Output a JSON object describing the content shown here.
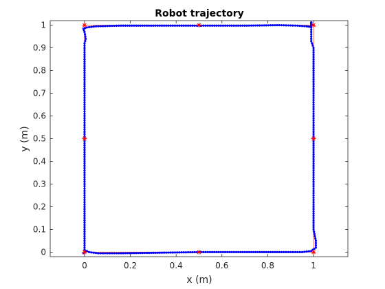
{
  "chart_data": {
    "type": "line",
    "title": "Robot trajectory",
    "xlabel": "x (m)",
    "ylabel": "y (m)",
    "xlim": [
      -0.15,
      1.15
    ],
    "ylim": [
      -0.02,
      1.02
    ],
    "xticks": [
      0,
      0.2,
      0.4,
      0.6,
      0.8,
      1
    ],
    "xtick_labels": [
      "0",
      "0.2",
      "0.4",
      "0.6",
      "0.8",
      "1"
    ],
    "yticks": [
      0,
      0.1,
      0.2,
      0.3,
      0.4,
      0.5,
      0.6,
      0.7,
      0.8,
      0.9,
      1
    ],
    "ytick_labels": [
      "0",
      "0.1",
      "0.2",
      "0.3",
      "0.4",
      "0.5",
      "0.6",
      "0.7",
      "0.8",
      "0.9",
      "1"
    ],
    "grid": false,
    "box": true,
    "series": [
      {
        "role": "reference-path",
        "style": "line",
        "color": "#ff6a3d",
        "x": [
          0,
          1,
          1,
          0,
          0
        ],
        "y": [
          0,
          0,
          1,
          1,
          0
        ]
      },
      {
        "role": "trajectory",
        "style": "line-with-dots",
        "color": "#0000ff",
        "x": [
          0.0,
          0.02,
          0.06,
          0.15,
          0.3,
          0.5,
          0.7,
          0.85,
          0.95,
          0.99,
          1.01,
          1.01,
          1.0,
          1.0,
          1.0,
          1.0,
          1.0,
          1.0,
          1.0,
          1.0,
          1.0,
          1.0,
          0.99,
          0.99,
          0.99,
          0.99,
          0.99,
          0.99,
          0.99,
          0.99,
          0.99,
          0.99,
          0.99,
          0.99,
          0.99,
          0.99,
          0.985,
          0.97,
          0.93,
          0.85,
          0.7,
          0.5,
          0.3,
          0.15,
          0.05,
          0.01,
          -0.005,
          0.0,
          0.005,
          0.0,
          0.0,
          0.0,
          0.0,
          0.0,
          0.0,
          0.0,
          0.0,
          0.0,
          0.0,
          0.0,
          0.0,
          0.0,
          0.0,
          0.0,
          0.005,
          0.003,
          -0.005,
          0.0
        ],
        "y": [
          0.01,
          0.0,
          -0.005,
          -0.005,
          -0.003,
          0.0,
          0.0,
          0.0,
          0.0,
          0.005,
          0.02,
          0.05,
          0.1,
          0.2,
          0.3,
          0.4,
          0.5,
          0.55,
          0.6,
          0.7,
          0.8,
          0.9,
          0.93,
          0.95,
          0.97,
          0.98,
          0.99,
          1.0,
          1.005,
          1.01,
          1.012,
          1.012,
          1.01,
          1.005,
          1.0,
          0.995,
          0.993,
          0.995,
          0.998,
          1.0,
          0.998,
          0.998,
          0.998,
          0.998,
          0.995,
          0.99,
          0.985,
          0.97,
          0.94,
          0.92,
          0.9,
          0.8,
          0.7,
          0.6,
          0.5,
          0.4,
          0.3,
          0.2,
          0.1,
          0.07,
          0.05,
          0.03,
          0.02,
          0.01,
          0.005,
          0.0,
          -0.005,
          0.0
        ]
      },
      {
        "role": "waypoints",
        "style": "markers",
        "marker": "star",
        "color": "#ff0000",
        "x": [
          0,
          0.5,
          1,
          1,
          1,
          0.5,
          0,
          0
        ],
        "y": [
          0,
          0,
          0,
          0.5,
          1,
          1,
          1,
          0.5
        ]
      }
    ]
  },
  "colors": {
    "axes": "#262626",
    "reference": "#ff6a3d",
    "trajectory": "#0000ff",
    "waypoint": "#ff0000"
  }
}
